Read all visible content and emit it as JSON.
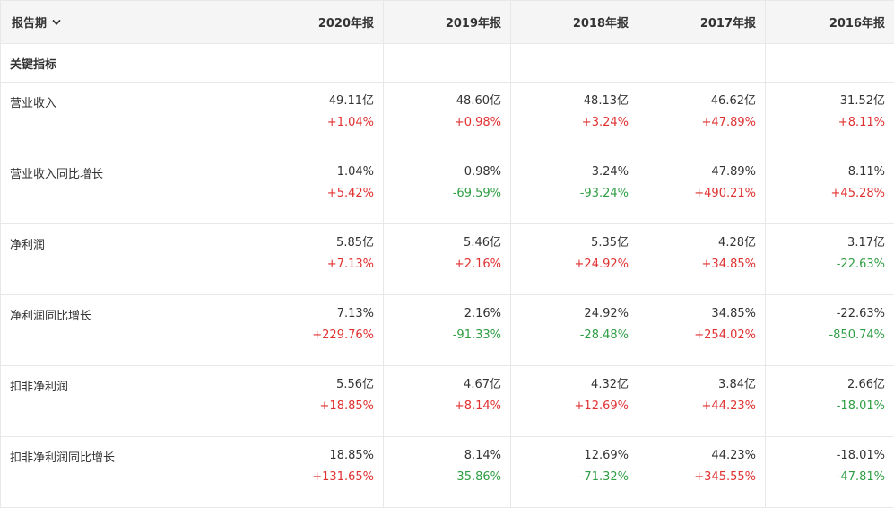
{
  "colors": {
    "up": "#e03131",
    "down": "#2f9e44",
    "header_bg": "#f5f5f5",
    "border": "#e8e8e8"
  },
  "header": {
    "period_label": "报告期",
    "dropdown_icon": "chevron-down-icon",
    "columns": [
      "2020年报",
      "2019年报",
      "2018年报",
      "2017年报",
      "2016年报"
    ]
  },
  "section": {
    "label": "关键指标"
  },
  "rows": [
    {
      "label": "营业收入",
      "cells": [
        {
          "value": "49.11亿",
          "change": "+1.04%",
          "dir": "up"
        },
        {
          "value": "48.60亿",
          "change": "+0.98%",
          "dir": "up"
        },
        {
          "value": "48.13亿",
          "change": "+3.24%",
          "dir": "up"
        },
        {
          "value": "46.62亿",
          "change": "+47.89%",
          "dir": "up"
        },
        {
          "value": "31.52亿",
          "change": "+8.11%",
          "dir": "up"
        }
      ]
    },
    {
      "label": "营业收入同比增长",
      "cells": [
        {
          "value": "1.04%",
          "change": "+5.42%",
          "dir": "up"
        },
        {
          "value": "0.98%",
          "change": "-69.59%",
          "dir": "down"
        },
        {
          "value": "3.24%",
          "change": "-93.24%",
          "dir": "down"
        },
        {
          "value": "47.89%",
          "change": "+490.21%",
          "dir": "up"
        },
        {
          "value": "8.11%",
          "change": "+45.28%",
          "dir": "up"
        }
      ]
    },
    {
      "label": "净利润",
      "cells": [
        {
          "value": "5.85亿",
          "change": "+7.13%",
          "dir": "up"
        },
        {
          "value": "5.46亿",
          "change": "+2.16%",
          "dir": "up"
        },
        {
          "value": "5.35亿",
          "change": "+24.92%",
          "dir": "up"
        },
        {
          "value": "4.28亿",
          "change": "+34.85%",
          "dir": "up"
        },
        {
          "value": "3.17亿",
          "change": "-22.63%",
          "dir": "down"
        }
      ]
    },
    {
      "label": "净利润同比增长",
      "cells": [
        {
          "value": "7.13%",
          "change": "+229.76%",
          "dir": "up"
        },
        {
          "value": "2.16%",
          "change": "-91.33%",
          "dir": "down"
        },
        {
          "value": "24.92%",
          "change": "-28.48%",
          "dir": "down"
        },
        {
          "value": "34.85%",
          "change": "+254.02%",
          "dir": "up"
        },
        {
          "value": "-22.63%",
          "change": "-850.74%",
          "dir": "down"
        }
      ]
    },
    {
      "label": "扣非净利润",
      "cells": [
        {
          "value": "5.56亿",
          "change": "+18.85%",
          "dir": "up"
        },
        {
          "value": "4.67亿",
          "change": "+8.14%",
          "dir": "up"
        },
        {
          "value": "4.32亿",
          "change": "+12.69%",
          "dir": "up"
        },
        {
          "value": "3.84亿",
          "change": "+44.23%",
          "dir": "up"
        },
        {
          "value": "2.66亿",
          "change": "-18.01%",
          "dir": "down"
        }
      ]
    },
    {
      "label": "扣非净利润同比增长",
      "cells": [
        {
          "value": "18.85%",
          "change": "+131.65%",
          "dir": "up"
        },
        {
          "value": "8.14%",
          "change": "-35.86%",
          "dir": "down"
        },
        {
          "value": "12.69%",
          "change": "-71.32%",
          "dir": "down"
        },
        {
          "value": "44.23%",
          "change": "+345.55%",
          "dir": "up"
        },
        {
          "value": "-18.01%",
          "change": "-47.81%",
          "dir": "down"
        }
      ]
    }
  ]
}
